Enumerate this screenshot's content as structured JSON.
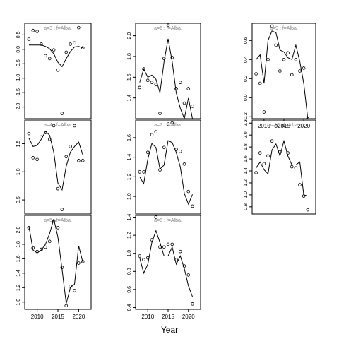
{
  "figure": {
    "xlabel": "Year"
  },
  "chart_data": [
    {
      "type": "scatter",
      "title": "a=3  :  f=Alba.",
      "xlim": [
        2007,
        2023
      ],
      "ylim": [
        -2.4,
        0.9
      ],
      "yticks": [
        -2.0,
        -1.5,
        -1.0,
        -0.5,
        0.0,
        0.5
      ],
      "ytick_labels": [
        "-2.0",
        "-1.5",
        "-1.0",
        "-0.5",
        "0.0",
        "0.5"
      ],
      "xticks": [],
      "xtick_labels": [],
      "series": [
        {
          "kind": "points",
          "x": [
            2008,
            2009,
            2010,
            2011,
            2012,
            2013,
            2014,
            2015,
            2016,
            2017,
            2018,
            2019,
            2020,
            2021
          ],
          "y": [
            0.35,
            0.65,
            0.62,
            0.18,
            -0.22,
            -0.32,
            -0.02,
            -0.72,
            -2.22,
            -0.1,
            0.18,
            0.22,
            0.75,
            0.05
          ]
        },
        {
          "kind": "line",
          "x": [
            2008,
            2009,
            2010,
            2011,
            2012,
            2013,
            2014,
            2015,
            2016,
            2017,
            2018,
            2019,
            2020,
            2021
          ],
          "y": [
            0.15,
            0.15,
            0.15,
            0.15,
            0.1,
            0.02,
            -0.15,
            -0.45,
            -0.6,
            -0.32,
            -0.08,
            0.08,
            0.1,
            0.05
          ]
        }
      ]
    },
    {
      "type": "scatter",
      "title": "a=6  :  f=Alba.",
      "xlim": [
        2007,
        2023
      ],
      "ylim": [
        1.2,
        2.12
      ],
      "yticks": [
        1.4,
        1.6,
        1.8,
        2.0
      ],
      "ytick_labels": [
        "1.4",
        "1.6",
        "1.8",
        "2.0"
      ],
      "xticks": [],
      "xtick_labels": [],
      "series": [
        {
          "kind": "points",
          "x": [
            2008,
            2009,
            2010,
            2011,
            2012,
            2013,
            2014,
            2015,
            2016,
            2017,
            2018,
            2019,
            2020,
            2021
          ],
          "y": [
            1.5,
            1.68,
            1.57,
            1.55,
            1.53,
            1.25,
            1.78,
            2.1,
            1.79,
            1.49,
            1.55,
            1.35,
            1.49,
            1.32
          ]
        },
        {
          "kind": "line",
          "x": [
            2008,
            2009,
            2010,
            2011,
            2012,
            2013,
            2014,
            2015,
            2016,
            2017,
            2018,
            2019,
            2020,
            2021
          ],
          "y": [
            1.55,
            1.68,
            1.6,
            1.62,
            1.58,
            1.45,
            1.75,
            1.97,
            1.75,
            1.45,
            1.3,
            1.2,
            1.4,
            1.2
          ]
        }
      ]
    },
    {
      "type": "scatter",
      "title": "a=9  :  f=Alba.",
      "xlim": [
        2007,
        2023
      ],
      "ylim": [
        -0.22,
        0.78
      ],
      "yticks": [
        -0.2,
        0.0,
        0.2,
        0.4,
        0.6
      ],
      "ytick_labels": [
        "-0.2",
        "0.0",
        "0.2",
        "0.4",
        "0.6"
      ],
      "xticks": [
        2010,
        2015,
        2020
      ],
      "xtick_labels": [
        "2010",
        "2015",
        "2020"
      ],
      "series": [
        {
          "kind": "points",
          "x": [
            2008,
            2009,
            2010,
            2011,
            2012,
            2013,
            2014,
            2015,
            2016,
            2017,
            2018,
            2019,
            2020,
            2021
          ],
          "y": [
            0.25,
            0.15,
            -0.15,
            0.4,
            0.75,
            0.55,
            0.28,
            0.4,
            0.47,
            0.24,
            0.4,
            0.28,
            0.31,
            -0.22
          ]
        },
        {
          "kind": "line",
          "x": [
            2008,
            2009,
            2010,
            2011,
            2012,
            2013,
            2014,
            2015,
            2016,
            2017,
            2018,
            2019,
            2020,
            2021
          ],
          "y": [
            0.4,
            0.45,
            0.15,
            0.6,
            0.7,
            0.68,
            0.5,
            0.48,
            0.42,
            0.4,
            0.55,
            0.38,
            0.15,
            -0.22
          ]
        }
      ]
    },
    {
      "type": "scatter",
      "title": "a=4  :  f=Alba.",
      "xlim": [
        2007,
        2023
      ],
      "ylim": [
        0.25,
        1.92
      ],
      "yticks": [
        0.5,
        1.0,
        1.5
      ],
      "ytick_labels": [
        "0.5",
        "1.0",
        "1.5"
      ],
      "xticks": [],
      "xtick_labels": [],
      "series": [
        {
          "kind": "points",
          "x": [
            2008,
            2009,
            2010,
            2011,
            2012,
            2013,
            2014,
            2015,
            2016,
            2017,
            2018,
            2019,
            2020,
            2021
          ],
          "y": [
            1.68,
            1.25,
            1.22,
            1.62,
            1.7,
            1.58,
            1.82,
            0.7,
            0.33,
            1.27,
            1.45,
            1.82,
            1.2,
            1.2
          ]
        },
        {
          "kind": "line",
          "x": [
            2008,
            2009,
            2010,
            2011,
            2012,
            2013,
            2014,
            2015,
            2016,
            2017,
            2018,
            2019,
            2020,
            2021
          ],
          "y": [
            1.6,
            1.45,
            1.47,
            1.58,
            1.72,
            1.65,
            1.35,
            0.8,
            0.68,
            1.1,
            1.35,
            1.45,
            1.53,
            1.3
          ]
        }
      ]
    },
    {
      "type": "scatter",
      "title": "a=7  :  f=Alba.",
      "xlim": [
        2007,
        2023
      ],
      "ylim": [
        0.82,
        1.78
      ],
      "yticks": [
        1.0,
        1.2,
        1.4,
        1.6
      ],
      "ytick_labels": [
        "1.0",
        "1.2",
        "1.4",
        "1.6"
      ],
      "xticks": [],
      "xtick_labels": [],
      "series": [
        {
          "kind": "points",
          "x": [
            2008,
            2009,
            2010,
            2011,
            2012,
            2013,
            2014,
            2015,
            2016,
            2017,
            2018,
            2019,
            2020,
            2021
          ],
          "y": [
            1.25,
            1.25,
            1.45,
            1.63,
            1.66,
            1.27,
            1.5,
            1.74,
            1.75,
            1.48,
            1.46,
            1.33,
            1.05,
            0.9
          ]
        },
        {
          "kind": "line",
          "x": [
            2008,
            2009,
            2010,
            2011,
            2012,
            2013,
            2014,
            2015,
            2016,
            2017,
            2018,
            2019,
            2020,
            2021
          ],
          "y": [
            1.2,
            1.13,
            1.38,
            1.54,
            1.5,
            1.28,
            1.32,
            1.57,
            1.55,
            1.45,
            1.3,
            1.03,
            0.92,
            1.02
          ]
        }
      ]
    },
    {
      "type": "scatter",
      "title": "a=10  :  f=Alba.",
      "xlim": [
        2007,
        2023
      ],
      "ylim": [
        0.68,
        2.25
      ],
      "yticks": [
        0.8,
        1.0,
        1.2,
        1.4,
        1.6,
        1.8,
        2.0,
        2.2
      ],
      "ytick_labels": [
        "0.8",
        "1.0",
        "1.2",
        "1.4",
        "1.6",
        "1.8",
        "2.0",
        "2.2"
      ],
      "xticks": [],
      "xtick_labels": [],
      "series": [
        {
          "kind": "points",
          "x": [
            2008,
            2009,
            2010,
            2011,
            2012,
            2013,
            2014,
            2015,
            2016,
            2017,
            2018,
            2019,
            2020,
            2021
          ],
          "y": [
            1.37,
            1.7,
            1.52,
            1.65,
            1.9,
            2.15,
            1.72,
            2.16,
            1.7,
            1.47,
            1.45,
            1.17,
            0.98,
            0.75
          ]
        },
        {
          "kind": "line",
          "x": [
            2008,
            2009,
            2010,
            2011,
            2012,
            2013,
            2014,
            2015,
            2016,
            2017,
            2018,
            2019,
            2020,
            2021
          ],
          "y": [
            1.45,
            1.55,
            1.42,
            1.35,
            1.75,
            1.85,
            1.65,
            1.9,
            1.65,
            1.5,
            1.5,
            1.55,
            1.0,
            0.98
          ]
        }
      ]
    },
    {
      "type": "scatter",
      "title": "a=5  :  f=Alba.",
      "xlim": [
        2007,
        2023
      ],
      "ylim": [
        0.9,
        2.2
      ],
      "yticks": [
        1.0,
        1.2,
        1.4,
        1.6,
        1.8,
        2.0
      ],
      "ytick_labels": [
        "1.0",
        "1.2",
        "1.4",
        "1.6",
        "1.8",
        "2.0"
      ],
      "xticks": [
        2010,
        2015,
        2020
      ],
      "xtick_labels": [
        "2010",
        "2015",
        "2020"
      ],
      "series": [
        {
          "kind": "points",
          "x": [
            2008,
            2009,
            2010,
            2011,
            2012,
            2013,
            2014,
            2015,
            2016,
            2017,
            2018,
            2019,
            2020,
            2021
          ],
          "y": [
            2.03,
            1.75,
            1.7,
            1.73,
            1.76,
            1.84,
            2.12,
            2.03,
            1.48,
            0.95,
            1.22,
            1.16,
            1.54,
            1.56
          ]
        },
        {
          "kind": "line",
          "x": [
            2008,
            2009,
            2010,
            2011,
            2012,
            2013,
            2014,
            2015,
            2016,
            2017,
            2018,
            2019,
            2020,
            2021
          ],
          "y": [
            2.05,
            1.72,
            1.68,
            1.72,
            1.8,
            1.95,
            2.15,
            1.9,
            1.45,
            0.98,
            1.2,
            1.25,
            1.78,
            1.55
          ]
        }
      ]
    },
    {
      "type": "scatter",
      "title": "a=8  :  f=Alba.",
      "xlim": [
        2007,
        2023
      ],
      "ylim": [
        0.38,
        1.42
      ],
      "yticks": [
        0.4,
        0.6,
        0.8,
        1.0,
        1.2,
        1.4
      ],
      "ytick_labels": [
        "0.4",
        "0.6",
        "0.8",
        "1.0",
        "1.2",
        "1.4"
      ],
      "xticks": [
        2010,
        2015,
        2020
      ],
      "xtick_labels": [
        "2010",
        "2015",
        "2020"
      ],
      "series": [
        {
          "kind": "points",
          "x": [
            2008,
            2009,
            2010,
            2011,
            2012,
            2013,
            2014,
            2015,
            2016,
            2017,
            2018,
            2019,
            2020,
            2021
          ],
          "y": [
            0.97,
            0.93,
            0.95,
            1.15,
            1.4,
            1.07,
            1.07,
            1.1,
            1.1,
            0.93,
            1.02,
            0.86,
            0.76,
            0.44
          ]
        },
        {
          "kind": "line",
          "x": [
            2008,
            2009,
            2010,
            2011,
            2012,
            2013,
            2014,
            2015,
            2016,
            2017,
            2018,
            2019,
            2020,
            2021
          ],
          "y": [
            0.95,
            0.78,
            0.88,
            1.12,
            1.25,
            1.12,
            0.97,
            0.97,
            1.07,
            0.88,
            0.97,
            0.83,
            0.64,
            0.52
          ]
        }
      ]
    }
  ]
}
